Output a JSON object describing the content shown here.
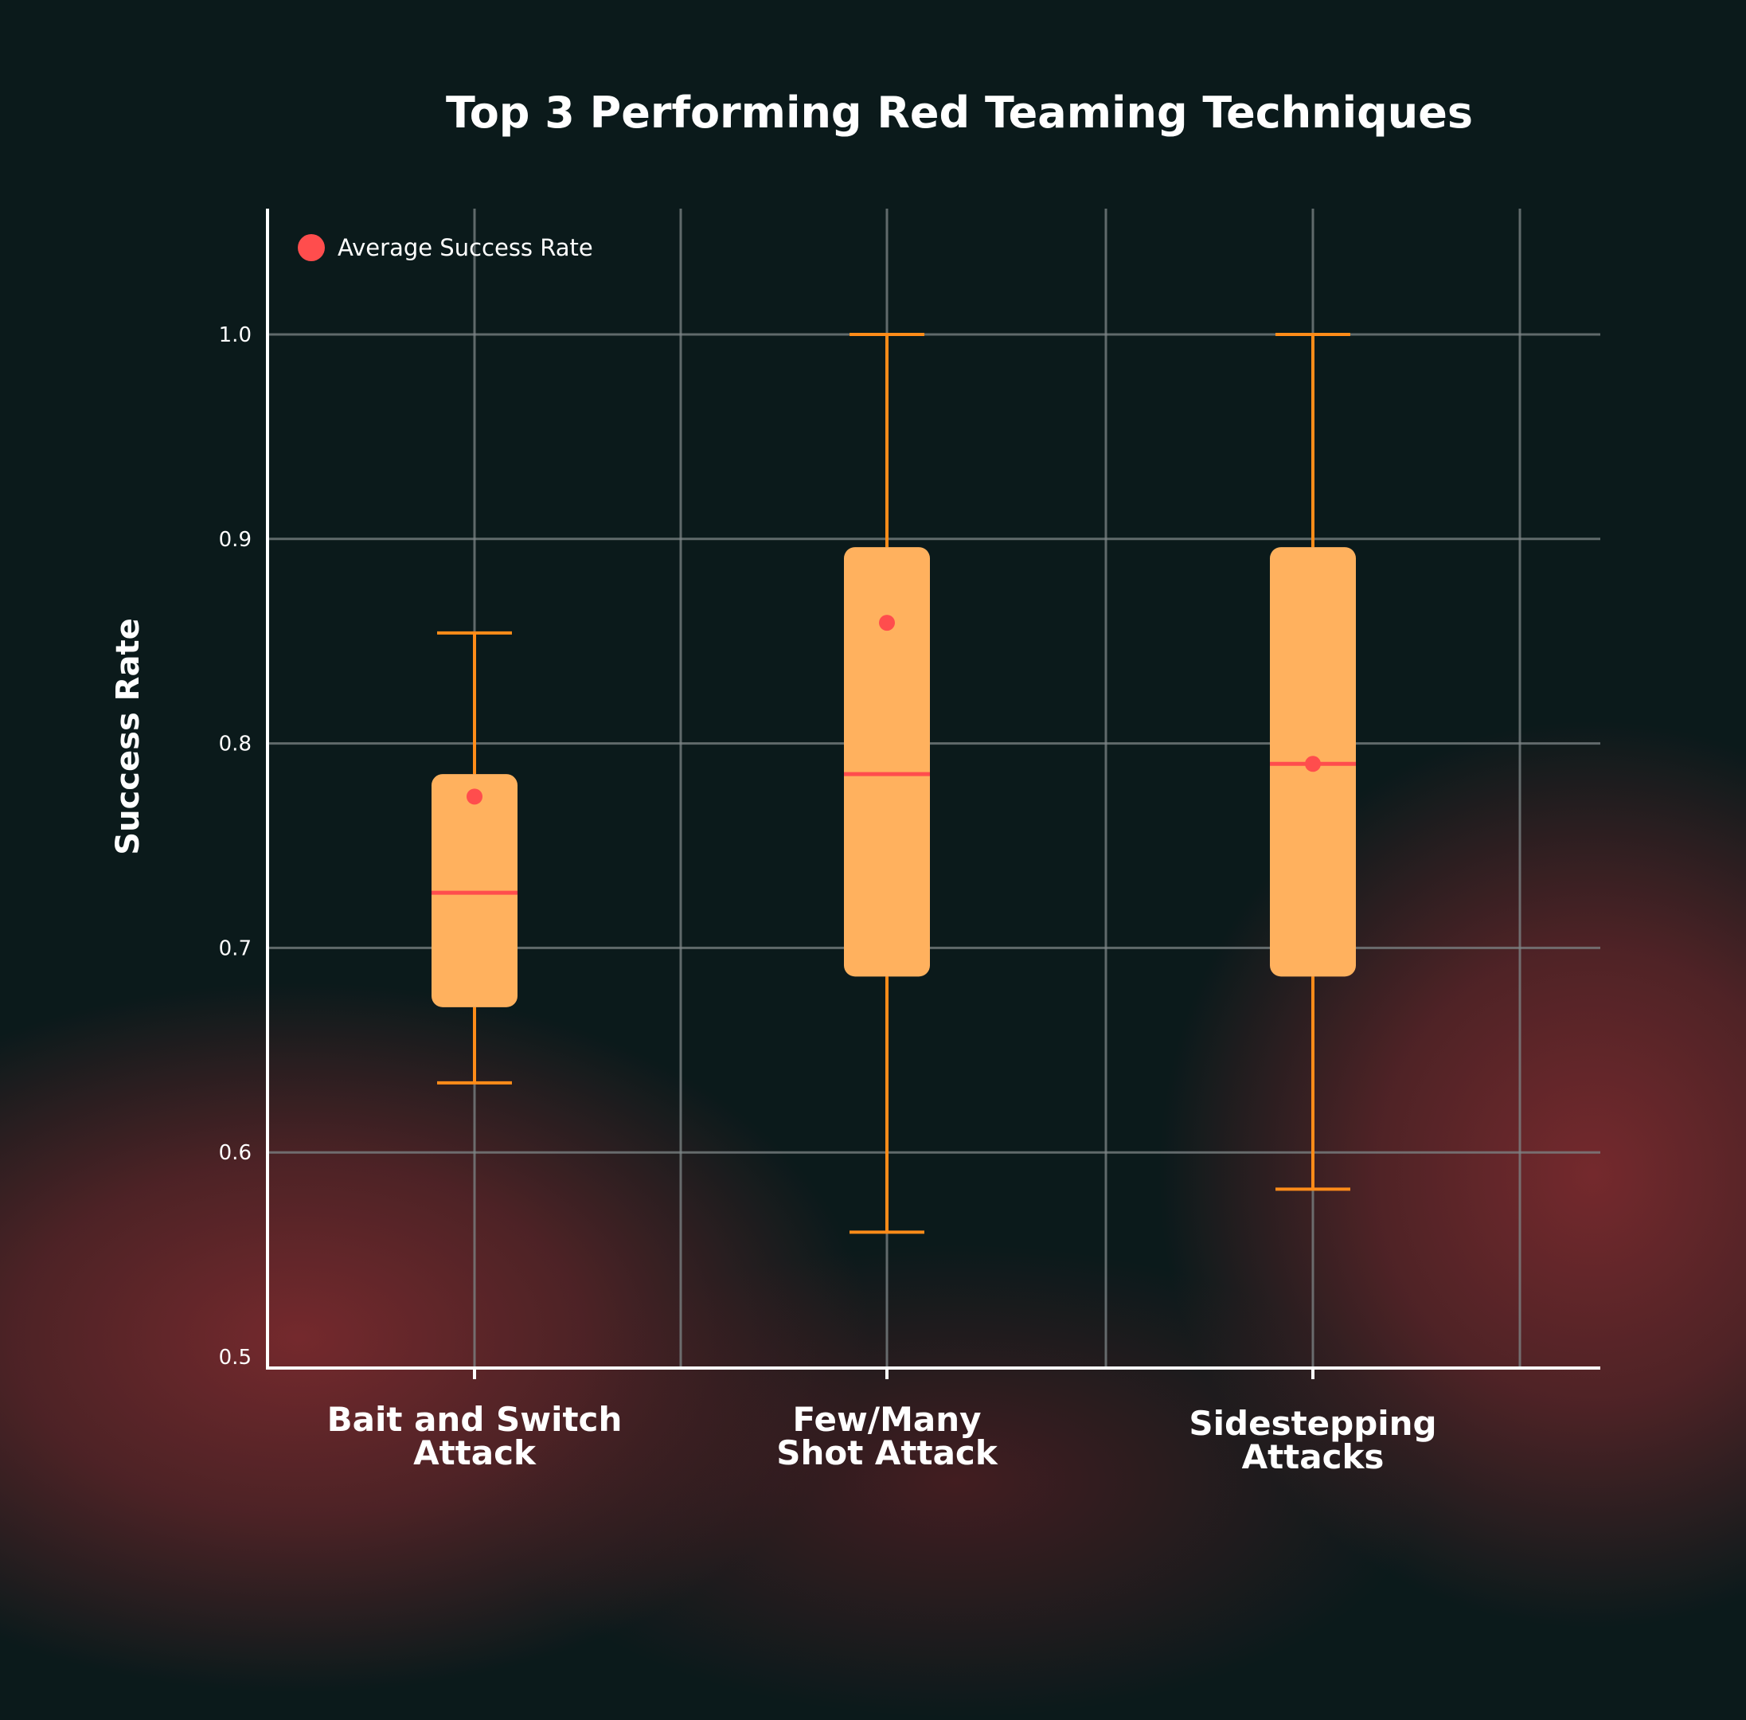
{
  "chart_data": {
    "type": "box",
    "title": "Top 3 Performing Red Teaming Techniques",
    "xlabel": "",
    "ylabel": "Success Rate",
    "ylim": [
      0.5,
      1.06
    ],
    "yticks": [
      "0.5",
      "0.6",
      "0.7",
      "0.8",
      "0.9",
      "1.0"
    ],
    "grid": true,
    "legend": {
      "label": "Average Success Rate",
      "position": "top-left"
    },
    "categories": [
      {
        "lines": [
          "Bait and Switch",
          "Attack"
        ],
        "min": 0.634,
        "q1": 0.671,
        "median": 0.727,
        "q3": 0.785,
        "max": 0.854,
        "mean": 0.774
      },
      {
        "lines": [
          "Few/Many",
          "Shot Attack"
        ],
        "min": 0.561,
        "q1": 0.686,
        "median": 0.785,
        "q3": 0.896,
        "max": 1.0,
        "mean": 0.859
      },
      {
        "lines": [
          "Sidestepping",
          "Attacks"
        ],
        "min": 0.582,
        "q1": 0.686,
        "median": 0.79,
        "q3": 0.896,
        "max": 1.0,
        "mean": 0.79
      }
    ],
    "colors": {
      "box": "#ffb15e",
      "whisker": "#ff8c19",
      "median": "#ff4d4d",
      "mean": "#ff4d4d",
      "grid": "#7d8687",
      "axis": "#ffffff"
    }
  }
}
